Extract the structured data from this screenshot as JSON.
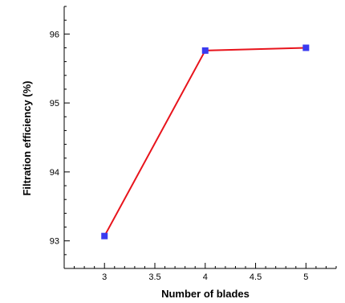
{
  "chart_data": {
    "type": "line",
    "title": "",
    "xlabel": "Number of blades",
    "ylabel": "Filtration efficiency (%)",
    "xlim": [
      2.6,
      5.3
    ],
    "ylim": [
      92.6,
      96.4
    ],
    "x_ticks": [
      3,
      3.5,
      4,
      4.5,
      5
    ],
    "x_tick_labels": [
      "3",
      "3.5",
      "4",
      "4.5",
      "5"
    ],
    "y_ticks": [
      93,
      94,
      95,
      96
    ],
    "y_tick_labels": [
      "93",
      "94",
      "95",
      "96"
    ],
    "grid": false,
    "series": [
      {
        "x": [
          3,
          4,
          5
        ],
        "y": [
          93.07,
          95.76,
          95.8
        ],
        "line_color": "#e8141c",
        "marker_color": "#3a3af0",
        "marker": "square"
      }
    ]
  }
}
